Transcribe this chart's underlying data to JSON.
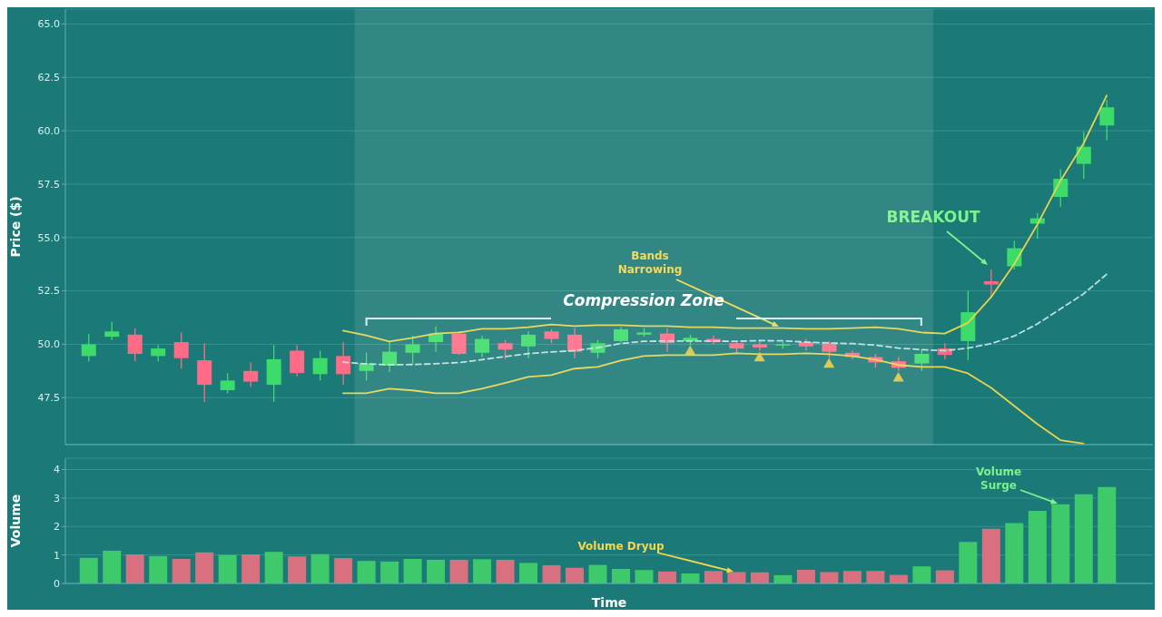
{
  "chart_data": [
    {
      "type": "candlestick",
      "ylabel": "Price ($)",
      "categories": [
        null,
        null,
        null,
        null,
        null,
        null,
        null,
        null,
        null,
        null,
        null,
        null,
        null,
        null,
        null,
        null,
        null,
        null,
        null,
        null,
        null,
        null,
        null,
        null,
        null,
        null,
        null,
        null,
        null,
        null,
        null,
        null,
        null,
        null,
        null,
        null,
        null,
        null,
        null,
        null,
        null,
        null,
        null,
        null,
        null
      ],
      "ohlc": [
        [
          49.45,
          50.5,
          49.2,
          50.0
        ],
        [
          50.35,
          51.05,
          50.2,
          50.6
        ],
        [
          50.45,
          50.75,
          49.2,
          49.55
        ],
        [
          49.45,
          49.95,
          49.2,
          49.8
        ],
        [
          50.1,
          50.55,
          48.85,
          49.35
        ],
        [
          49.25,
          50.05,
          47.3,
          48.1
        ],
        [
          47.85,
          48.65,
          47.7,
          48.3
        ],
        [
          48.75,
          49.15,
          48.0,
          48.25
        ],
        [
          48.1,
          49.95,
          47.3,
          49.3
        ],
        [
          49.7,
          49.95,
          48.5,
          48.65
        ],
        [
          48.6,
          49.7,
          48.3,
          49.35
        ],
        [
          49.45,
          50.1,
          48.1,
          48.6
        ],
        [
          48.75,
          49.6,
          48.3,
          49.1
        ],
        [
          49.0,
          50.1,
          48.7,
          49.65
        ],
        [
          49.6,
          50.4,
          49.05,
          50.0
        ],
        [
          50.1,
          50.85,
          49.65,
          50.5
        ],
        [
          50.5,
          50.6,
          49.5,
          49.55
        ],
        [
          49.6,
          50.4,
          49.4,
          50.25
        ],
        [
          50.05,
          50.2,
          49.3,
          49.75
        ],
        [
          49.9,
          50.6,
          49.35,
          50.45
        ],
        [
          50.6,
          50.7,
          50.05,
          50.25
        ],
        [
          50.45,
          50.75,
          49.35,
          49.65
        ],
        [
          49.6,
          50.2,
          49.35,
          50.05
        ],
        [
          50.15,
          50.8,
          50.05,
          50.7
        ],
        [
          50.45,
          50.75,
          50.35,
          50.55
        ],
        [
          50.5,
          50.75,
          49.65,
          50.05
        ],
        [
          50.15,
          50.45,
          49.95,
          50.3
        ],
        [
          50.25,
          50.4,
          50.0,
          50.1
        ],
        [
          50.05,
          50.15,
          49.6,
          49.8
        ],
        [
          50.0,
          50.15,
          49.7,
          49.85
        ],
        [
          49.95,
          50.1,
          49.8,
          50.0
        ],
        [
          50.1,
          50.25,
          49.7,
          49.9
        ],
        [
          50.05,
          50.15,
          49.35,
          49.65
        ],
        [
          49.6,
          49.7,
          49.3,
          49.4
        ],
        [
          49.4,
          49.55,
          48.9,
          49.15
        ],
        [
          49.2,
          49.4,
          48.75,
          48.9
        ],
        [
          49.1,
          49.75,
          48.75,
          49.55
        ],
        [
          49.8,
          50.05,
          49.3,
          49.5
        ],
        [
          50.15,
          52.5,
          49.25,
          51.5
        ],
        [
          52.95,
          53.5,
          52.2,
          52.8
        ],
        [
          53.65,
          54.85,
          53.5,
          54.5
        ],
        [
          55.65,
          56.15,
          54.95,
          55.9
        ],
        [
          56.9,
          58.2,
          56.45,
          57.75
        ],
        [
          58.45,
          59.95,
          57.75,
          59.25
        ],
        [
          60.25,
          61.45,
          59.55,
          61.1
        ]
      ],
      "colors": [
        "#3ddc6a",
        "#3ddc6a",
        "#ff6b86",
        "#3ddc6a",
        "#ff6b86",
        "#ff6b86",
        "#3ddc6a",
        "#ff6b86",
        "#3ddc6a",
        "#ff6b86",
        "#3ddc6a",
        "#ff6b86",
        "#3ddc6a",
        "#3ddc6a",
        "#3ddc6a",
        "#3ddc6a",
        "#ff6b86",
        "#3ddc6a",
        "#ff6b86",
        "#3ddc6a",
        "#ff6b86",
        "#ff6b86",
        "#3ddc6a",
        "#3ddc6a",
        "#3ddc6a",
        "#ff6b86",
        "#3ddc6a",
        "#ff6b86",
        "#ff6b86",
        "#ff6b86",
        "#3ddc6a",
        "#ff6b86",
        "#ff6b86",
        "#ff6b86",
        "#ff6b86",
        "#ff6b86",
        "#3ddc6a",
        "#ff6b86",
        "#3ddc6a",
        "#ff6b86",
        "#3ddc6a",
        "#3ddc6a",
        "#3ddc6a",
        "#3ddc6a",
        "#3ddc6a"
      ],
      "series": [
        {
          "type": "line",
          "color": "#e8d44d",
          "values": [
            null,
            null,
            null,
            null,
            null,
            null,
            null,
            null,
            null,
            null,
            null,
            50.64,
            50.42,
            50.13,
            50.3,
            50.5,
            50.55,
            50.72,
            50.72,
            50.8,
            50.93,
            50.85,
            50.89,
            50.89,
            50.85,
            50.85,
            50.8,
            50.8,
            50.76,
            50.76,
            50.76,
            50.72,
            50.72,
            50.76,
            50.8,
            50.72,
            50.55,
            50.5,
            51.0,
            52.2,
            53.75,
            55.6,
            57.65,
            59.4,
            61.65
          ]
        },
        {
          "type": "line",
          "color": "#b8e0e0",
          "line_style": "dashed",
          "values": [
            null,
            null,
            null,
            null,
            null,
            null,
            null,
            null,
            null,
            null,
            null,
            49.16,
            49.08,
            49.04,
            49.05,
            49.09,
            49.14,
            49.28,
            49.42,
            49.56,
            49.64,
            49.7,
            49.84,
            50.03,
            50.14,
            50.15,
            50.15,
            50.15,
            50.14,
            50.17,
            50.16,
            50.1,
            50.06,
            50.03,
            49.96,
            49.82,
            49.75,
            49.7,
            49.82,
            50.03,
            50.38,
            50.95,
            51.65,
            52.36,
            53.28
          ]
        },
        {
          "type": "line",
          "color": "#e8d44d",
          "values": [
            null,
            null,
            null,
            null,
            null,
            null,
            null,
            null,
            null,
            null,
            null,
            47.71,
            47.71,
            47.92,
            47.84,
            47.71,
            47.71,
            47.92,
            48.18,
            48.47,
            48.56,
            48.86,
            48.94,
            49.24,
            49.45,
            49.49,
            49.49,
            49.49,
            49.58,
            49.53,
            49.53,
            49.58,
            49.53,
            49.45,
            49.28,
            49.03,
            48.94,
            48.94,
            48.64,
            47.97,
            47.12,
            46.27,
            45.51,
            45.35,
            null
          ]
        },
        {
          "type": "scatter",
          "color": "#d8c648",
          "marker": "triangle",
          "values": [
            null,
            null,
            null,
            null,
            null,
            null,
            null,
            null,
            null,
            null,
            null,
            null,
            null,
            null,
            null,
            null,
            null,
            null,
            null,
            null,
            null,
            null,
            null,
            null,
            null,
            null,
            49.65,
            null,
            null,
            49.35,
            null,
            null,
            49.05,
            null,
            null,
            48.4,
            null,
            null,
            null,
            null,
            null,
            null,
            null,
            null,
            null
          ]
        }
      ],
      "annotations": [
        "BREAKOUT",
        "Bands\nNarrowing",
        "Compression Zone"
      ],
      "ylim": [
        45.3,
        65.7
      ],
      "yticks": [
        {
          "value": 47.5,
          "label": "47.5"
        },
        {
          "value": 50,
          "label": "50.0"
        },
        {
          "value": 52.5,
          "label": "52.5"
        },
        {
          "value": 55,
          "label": "55.0"
        },
        {
          "value": 57.5,
          "label": "57.5"
        },
        {
          "value": 60,
          "label": "60.0"
        },
        {
          "value": 62.5,
          "label": "62.5"
        },
        {
          "value": 65,
          "label": "65.0"
        }
      ],
      "grid": "y",
      "tick_labels": "y"
    },
    {
      "type": "bar",
      "xlabel": "Time",
      "ylabel": "Volume",
      "categories": [
        null,
        null,
        null,
        null,
        null,
        null,
        null,
        null,
        null,
        null,
        null,
        null,
        null,
        null,
        null,
        null,
        null,
        null,
        null,
        null,
        null,
        null,
        null,
        null,
        null,
        null,
        null,
        null,
        null,
        null,
        null,
        null,
        null,
        null,
        null,
        null,
        null,
        null,
        null,
        null,
        null,
        null,
        null,
        null,
        null
      ],
      "values": [
        0.9,
        1.15,
        1.02,
        0.96,
        0.86,
        1.09,
        1.0,
        1.02,
        1.11,
        0.95,
        1.03,
        0.89,
        0.79,
        0.77,
        0.86,
        0.83,
        0.83,
        0.85,
        0.83,
        0.72,
        0.64,
        0.55,
        0.65,
        0.51,
        0.47,
        0.42,
        0.35,
        0.44,
        0.4,
        0.39,
        0.29,
        0.48,
        0.4,
        0.44,
        0.44,
        0.3,
        0.6,
        0.46,
        1.46,
        1.92,
        2.12,
        2.55,
        2.78,
        3.13,
        3.39
      ],
      "colors": [
        "#3ec96a",
        "#3ec96a",
        "#d9707f",
        "#3ec96a",
        "#d9707f",
        "#d9707f",
        "#3ec96a",
        "#d9707f",
        "#3ec96a",
        "#d9707f",
        "#3ec96a",
        "#d9707f",
        "#3ec96a",
        "#3ec96a",
        "#3ec96a",
        "#3ec96a",
        "#d9707f",
        "#3ec96a",
        "#d9707f",
        "#3ec96a",
        "#d9707f",
        "#d9707f",
        "#3ec96a",
        "#3ec96a",
        "#3ec96a",
        "#d9707f",
        "#3ec96a",
        "#d9707f",
        "#d9707f",
        "#d9707f",
        "#3ec96a",
        "#d9707f",
        "#d9707f",
        "#d9707f",
        "#d9707f",
        "#d9707f",
        "#3ec96a",
        "#d9707f",
        "#3ec96a",
        "#d9707f",
        "#3ec96a",
        "#3ec96a",
        "#3ec96a",
        "#3ec96a",
        "#3ec96a"
      ],
      "annotations": [
        "Volume Dryup",
        "Volume\nSurge"
      ],
      "ylim": [
        0,
        4.4
      ],
      "yticks": [
        0,
        1,
        2,
        3,
        4
      ],
      "grid": "y",
      "tick_labels": "y"
    }
  ]
}
